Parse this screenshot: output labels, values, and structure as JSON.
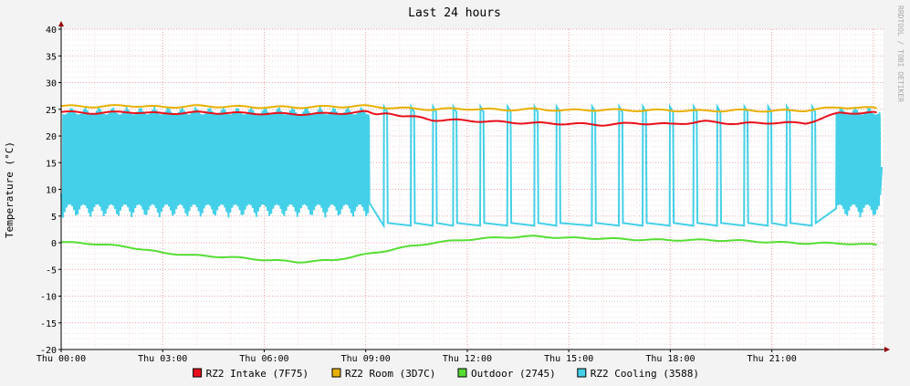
{
  "chart_data": {
    "type": "line",
    "title": "Last 24 hours",
    "ylabel": "Temperature (°C)",
    "watermark": "RRDTOOL / TOBI OETIKER",
    "ylim": [
      -20,
      40
    ],
    "yticks": [
      40,
      35,
      30,
      25,
      20,
      15,
      10,
      5,
      0,
      -5,
      -10,
      -15,
      -20
    ],
    "xlim_hours": [
      0,
      24.3
    ],
    "xticks": [
      {
        "hour": 0,
        "label": "Thu 00:00"
      },
      {
        "hour": 3,
        "label": "Thu 03:00"
      },
      {
        "hour": 6,
        "label": "Thu 06:00"
      },
      {
        "hour": 9,
        "label": "Thu 09:00"
      },
      {
        "hour": 12,
        "label": "Thu 12:00"
      },
      {
        "hour": 15,
        "label": "Thu 15:00"
      },
      {
        "hour": 18,
        "label": "Thu 18:00"
      },
      {
        "hour": 21,
        "label": "Thu 21:00"
      }
    ],
    "grid": true,
    "legend_position": "bottom",
    "series": [
      {
        "name": "RZ2 Intake (7F75)",
        "color": "#e8101a",
        "x": [
          0,
          1,
          2,
          3,
          4,
          5,
          6,
          7,
          8,
          9,
          9.5,
          10.2,
          11,
          12,
          13,
          14,
          15,
          16,
          17,
          18,
          19,
          20,
          21,
          22,
          23,
          24.1
        ],
        "y": [
          24.5,
          24.3,
          24.5,
          24.2,
          24.4,
          24.3,
          24.2,
          24.1,
          24.2,
          24.5,
          24.1,
          23.8,
          23.0,
          22.9,
          22.6,
          22.4,
          22.3,
          22.1,
          22.4,
          22.2,
          22.7,
          22.3,
          22.5,
          22.4,
          24.3,
          24.4
        ]
      },
      {
        "name": "RZ2 Room (3D7C)",
        "color": "#e8b000",
        "x": [
          0,
          1,
          2,
          3,
          4,
          5,
          6,
          7,
          8,
          9,
          10,
          11,
          12,
          13,
          14,
          15,
          16,
          17,
          18,
          19,
          20,
          21,
          22,
          23,
          24.1
        ],
        "y": [
          25.6,
          25.5,
          25.7,
          25.4,
          25.6,
          25.5,
          25.4,
          25.4,
          25.5,
          25.6,
          25.2,
          25.0,
          25.1,
          24.9,
          25.0,
          24.8,
          24.9,
          24.8,
          24.8,
          24.7,
          24.8,
          24.7,
          24.8,
          25.4,
          25.2
        ]
      },
      {
        "name": "Outdoor (2745)",
        "color": "#55dd33",
        "x": [
          0,
          1,
          2,
          3,
          4,
          5,
          6,
          7,
          8,
          9,
          10,
          11,
          12,
          13,
          14,
          15,
          16,
          17,
          18,
          19,
          20,
          21,
          22,
          23,
          24.1
        ],
        "y": [
          0.1,
          -0.2,
          -0.8,
          -1.9,
          -2.4,
          -2.7,
          -3.2,
          -3.6,
          -3.3,
          -2.2,
          -1.0,
          0.0,
          0.6,
          1.0,
          1.2,
          0.9,
          0.8,
          0.6,
          0.5,
          0.5,
          0.4,
          0.1,
          -0.1,
          -0.1,
          -0.4
        ]
      },
      {
        "name": "RZ2 Cooling (3588)",
        "color": "#44d0e8",
        "baseline": 3.2,
        "peak": 25.5,
        "x_cycling_until": 9.1,
        "x_cycling_again_from": 22.9,
        "spike_hours": [
          9.55,
          10.35,
          11.0,
          11.6,
          12.4,
          13.2,
          14.0,
          14.65,
          15.7,
          16.5,
          17.2,
          18.0,
          18.7,
          19.4,
          20.2,
          20.9,
          21.45,
          22.2
        ]
      }
    ]
  }
}
